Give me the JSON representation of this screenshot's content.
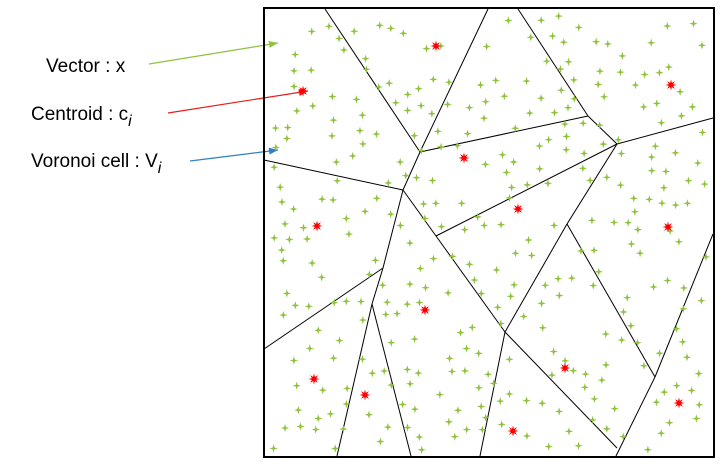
{
  "legend": [
    {
      "id": "vector",
      "label": "Vector : x",
      "subscript": "",
      "arrow_color": "#8fc23f"
    },
    {
      "id": "centroid",
      "label": "Centroid : c",
      "subscript": "i",
      "arrow_color": "#e81e1e"
    },
    {
      "id": "cell",
      "label": "Voronoi cell : V",
      "subscript": "i",
      "arrow_color": "#2f7fc4"
    }
  ],
  "colors": {
    "frame": "#000000",
    "cell_edge": "#000000",
    "vector": "#8fc23f",
    "centroid": "#ff0000"
  },
  "markers": {
    "vector": "star-4-point",
    "centroid": "star-8-point"
  }
}
